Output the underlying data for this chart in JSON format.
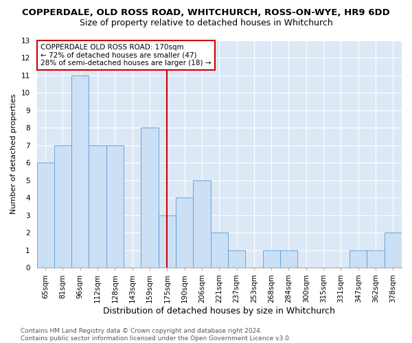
{
  "title": "COPPERDALE, OLD ROSS ROAD, WHITCHURCH, ROSS-ON-WYE, HR9 6DD",
  "subtitle": "Size of property relative to detached houses in Whitchurch",
  "xlabel": "Distribution of detached houses by size in Whitchurch",
  "ylabel": "Number of detached properties",
  "categories": [
    "65sqm",
    "81sqm",
    "96sqm",
    "112sqm",
    "128sqm",
    "143sqm",
    "159sqm",
    "175sqm",
    "190sqm",
    "206sqm",
    "221sqm",
    "237sqm",
    "253sqm",
    "268sqm",
    "284sqm",
    "300sqm",
    "315sqm",
    "331sqm",
    "347sqm",
    "362sqm",
    "378sqm"
  ],
  "values": [
    6,
    7,
    11,
    7,
    7,
    0,
    8,
    3,
    4,
    5,
    2,
    1,
    0,
    1,
    1,
    0,
    0,
    0,
    1,
    1,
    2
  ],
  "bar_color": "#cce0f5",
  "bar_edge_color": "#5b9bd5",
  "vline_index": 7,
  "vline_color": "#cc0000",
  "ylim_max": 13,
  "yticks": [
    0,
    1,
    2,
    3,
    4,
    5,
    6,
    7,
    8,
    9,
    10,
    11,
    12,
    13
  ],
  "annotation_line1": "COPPERDALE OLD ROSS ROAD: 170sqm",
  "annotation_line2": "← 72% of detached houses are smaller (47)",
  "annotation_line3": "28% of semi-detached houses are larger (18) →",
  "footnote_line1": "Contains HM Land Registry data © Crown copyright and database right 2024.",
  "footnote_line2": "Contains public sector information licensed under the Open Government Licence v3.0.",
  "bg_color": "#dce8f5",
  "grid_color": "#ffffff",
  "title_fontsize": 9.5,
  "subtitle_fontsize": 9,
  "xlabel_fontsize": 9,
  "ylabel_fontsize": 8,
  "tick_fontsize": 7.5,
  "annotation_fontsize": 7.5,
  "footnote_fontsize": 6.5
}
